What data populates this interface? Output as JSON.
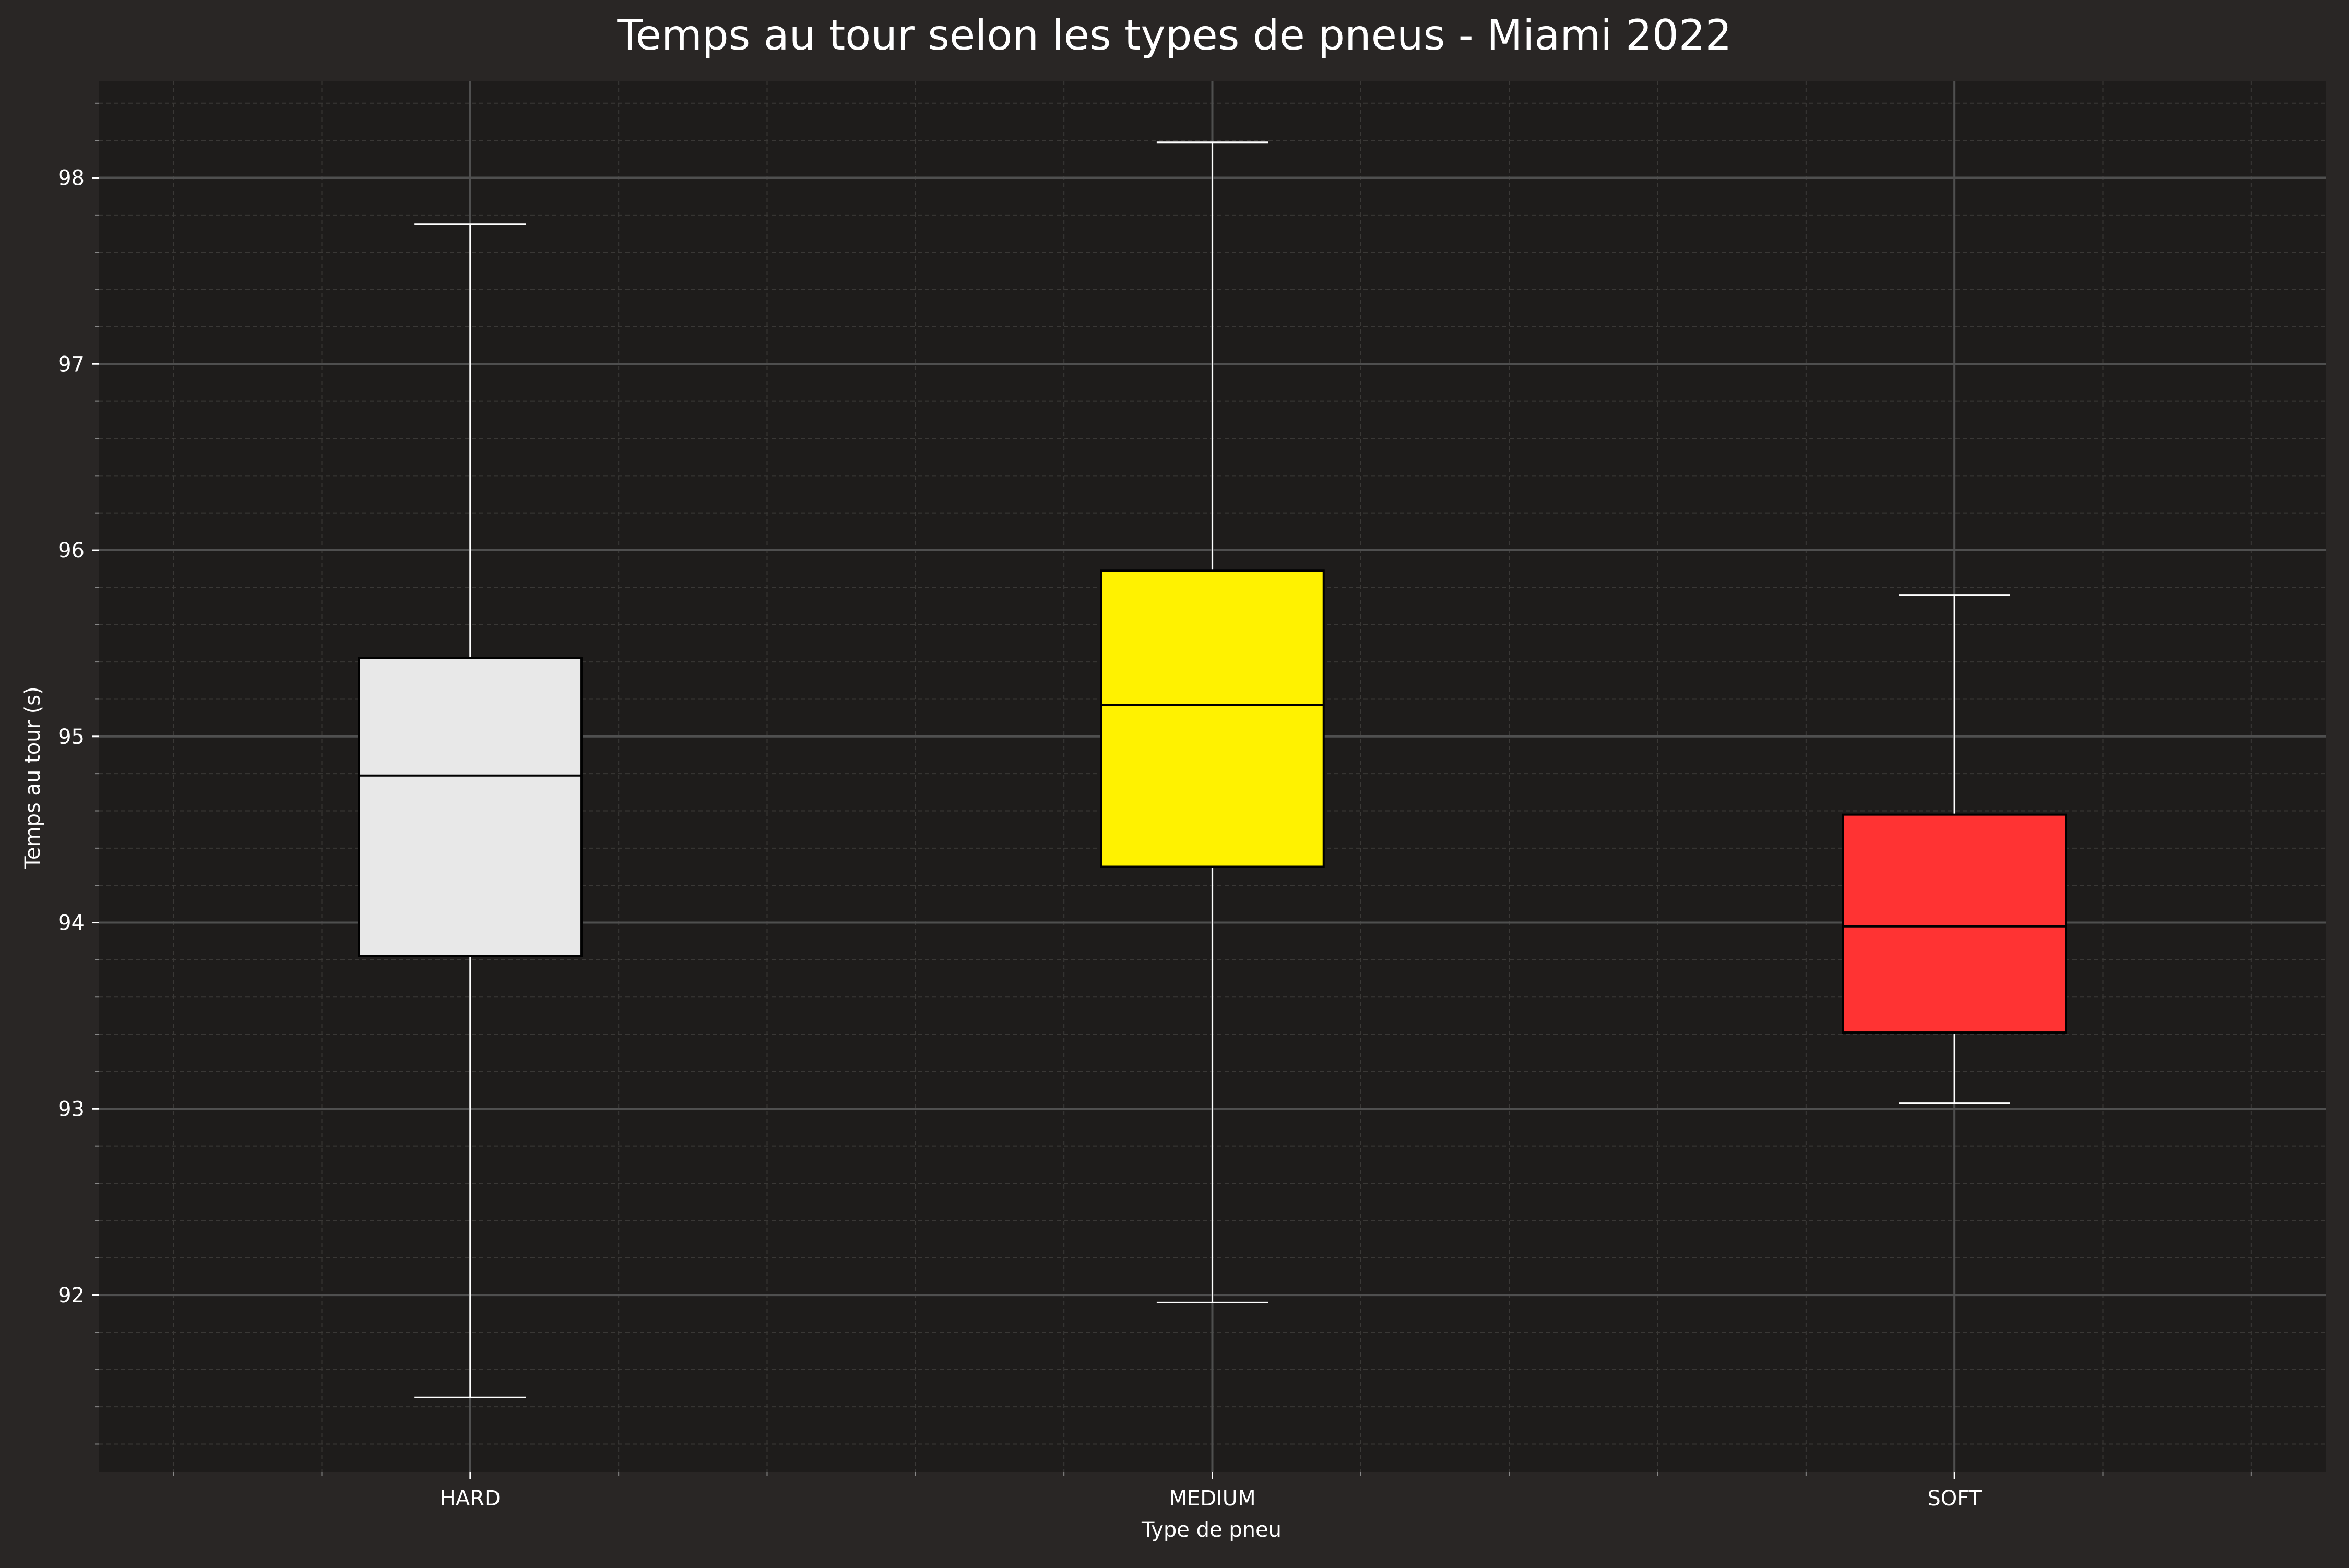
{
  "chart_data": {
    "type": "box",
    "title": "Temps au tour selon les types de pneus - Miami 2022",
    "xlabel": "Type de pneu",
    "ylabel": "Temps au tour (s)",
    "ylim": [
      91.05,
      98.52
    ],
    "yticks": [
      92,
      93,
      94,
      95,
      96,
      97,
      98
    ],
    "grid": true,
    "categories": [
      "HARD",
      "MEDIUM",
      "SOFT"
    ],
    "boxes": [
      {
        "category": "HARD",
        "whisker_low": 91.45,
        "q1": 93.82,
        "median": 94.79,
        "q3": 95.42,
        "whisker_high": 97.75,
        "color": "#E8E8E8"
      },
      {
        "category": "MEDIUM",
        "whisker_low": 91.96,
        "q1": 94.3,
        "median": 95.17,
        "q3": 95.89,
        "whisker_high": 98.19,
        "color": "#FFF200"
      },
      {
        "category": "SOFT",
        "whisker_low": 93.03,
        "q1": 93.41,
        "median": 93.98,
        "q3": 94.58,
        "whisker_high": 95.76,
        "color": "#FF3333"
      }
    ],
    "colors": {
      "figure_bg": "#292625",
      "plot_bg": "#1E1C1B",
      "text": "#FFFFFF",
      "whisker": "#FFFFFF",
      "major_grid": "#4F4F4F",
      "minor_grid": "#3A3836"
    }
  }
}
